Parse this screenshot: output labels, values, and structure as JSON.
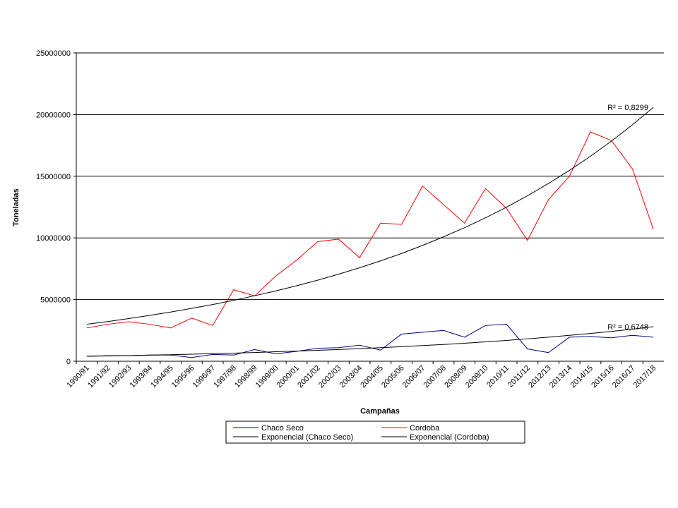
{
  "chart_data": {
    "type": "line",
    "x_label": "Campañas",
    "y_label": "Toneladas",
    "categories": [
      "1990/91",
      "1991/92",
      "1992/93",
      "1993/94",
      "1994/95",
      "1995/96",
      "1996/97",
      "1997/98",
      "1998/99",
      "1999/00",
      "2000/01",
      "2001/02",
      "2002/03",
      "2003/04",
      "2004/05",
      "2005/06",
      "2006/07",
      "2007/08",
      "2008/09",
      "2009/10",
      "2010/11",
      "2011/12",
      "2012/13",
      "2013/14",
      "2014/15",
      "2015/16",
      "2016/17",
      "2017/18"
    ],
    "series": [
      {
        "name": "Chaco Seco",
        "color": "#000080",
        "values": [
          400000,
          450000,
          450000,
          500000,
          500000,
          300000,
          550000,
          500000,
          950000,
          600000,
          800000,
          1050000,
          1100000,
          1300000,
          900000,
          2200000,
          2350000,
          2500000,
          1950000,
          2900000,
          3000000,
          1000000,
          700000,
          1950000,
          2000000,
          1900000,
          2100000,
          1950000
        ]
      },
      {
        "name": "Cordoba",
        "color": "#ff0000",
        "values": [
          2700000,
          3000000,
          3200000,
          3000000,
          2700000,
          3500000,
          2900000,
          5800000,
          5300000,
          6900000,
          8200000,
          9700000,
          9900000,
          8400000,
          11200000,
          11100000,
          14200000,
          12700000,
          11200000,
          14000000,
          12400000,
          9800000,
          13100000,
          15000000,
          18600000,
          17900000,
          15600000,
          10700000
        ]
      },
      {
        "name": "Exponencial (Chaco Seco)",
        "color": "#000000",
        "values": [
          400000,
          430000,
          460000,
          500000,
          530000,
          570000,
          620000,
          660000,
          710000,
          770000,
          820000,
          890000,
          950000,
          1020000,
          1100000,
          1180000,
          1270000,
          1360000,
          1460000,
          1570000,
          1690000,
          1820000,
          1950000,
          2100000,
          2250000,
          2420000,
          2600000,
          2800000
        ]
      },
      {
        "name": "Exponencial (Cordoba)",
        "color": "#000000",
        "values": [
          3000000,
          3220000,
          3460000,
          3720000,
          3990000,
          4290000,
          4600000,
          4940000,
          5310000,
          5700000,
          6120000,
          6570000,
          7060000,
          7580000,
          8140000,
          8740000,
          9390000,
          10090000,
          10830000,
          11630000,
          12490000,
          13420000,
          14410000,
          15480000,
          16620000,
          17850000,
          19170000,
          20590000
        ]
      }
    ],
    "annotations": [
      "R² = 0,8299",
      "R² = 0,6748"
    ],
    "ylim": [
      0,
      25000000
    ],
    "yticks": [
      0,
      5000000,
      10000000,
      15000000,
      20000000,
      25000000
    ],
    "grid": true
  }
}
